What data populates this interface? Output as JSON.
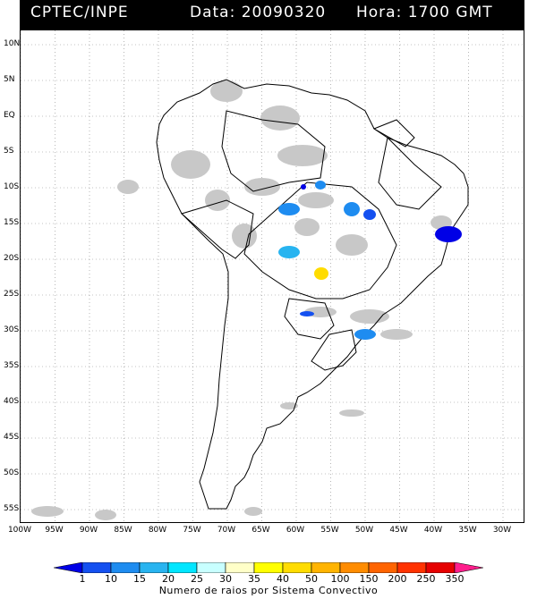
{
  "header": {
    "agency": "CPTEC/INPE",
    "date_label": "Data: 20090320",
    "hour_label": "Hora: 1700 GMT"
  },
  "map": {
    "region": "South America",
    "latitude_labels": [
      "10N",
      "5N",
      "EQ",
      "5S",
      "10S",
      "15S",
      "20S",
      "25S",
      "30S",
      "35S",
      "40S",
      "45S",
      "50S",
      "55S"
    ],
    "longitude_labels": [
      "100W",
      "95W",
      "90W",
      "85W",
      "80W",
      "75W",
      "70W",
      "65W",
      "60W",
      "55W",
      "50W",
      "45W",
      "40W",
      "35W",
      "30W"
    ],
    "colors": {
      "land_outline": "#000000",
      "cloud_gray": "#c8c8c8",
      "gridline": "#888888"
    }
  },
  "colorbar": {
    "title": "Numero de raios por Sistema Convectivo",
    "tick_labels": [
      "1",
      "10",
      "15",
      "20",
      "25",
      "30",
      "35",
      "40",
      "50",
      "100",
      "150",
      "200",
      "250",
      "350"
    ],
    "colors": [
      "#0000e6",
      "#1450f0",
      "#1e8cf0",
      "#28b4f0",
      "#00e6ff",
      "#c8ffff",
      "#ffffc8",
      "#ffff00",
      "#ffdc00",
      "#ffb400",
      "#ff8c00",
      "#ff6400",
      "#ff3200",
      "#e60000",
      "#ff1e8c"
    ]
  }
}
